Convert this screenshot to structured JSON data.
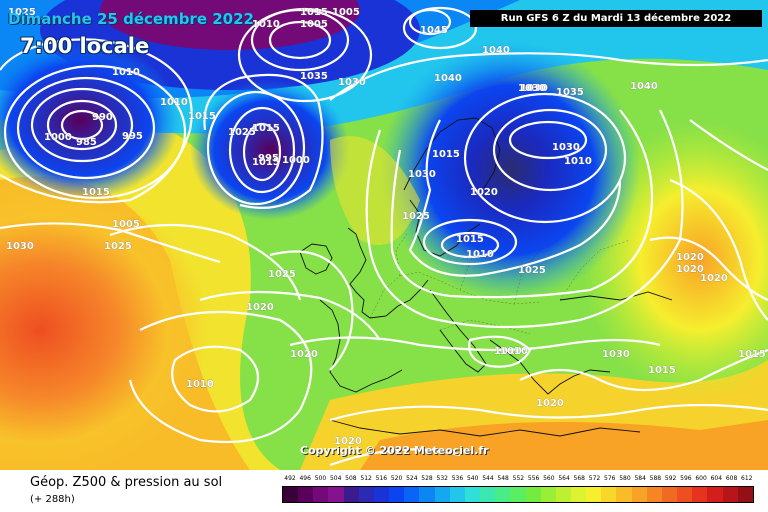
{
  "header": {
    "date": "Dimanche 25 décembre 2022",
    "time": "7:00 locale",
    "run": "Run GFS 6 Z du Mardi 13 décembre 2022"
  },
  "footer": {
    "title": "Géop. Z500 & pression au sol",
    "lead": "(+ 288h)",
    "copyright": "Copyright © 2022 Meteociel.fr"
  },
  "isobar_labels": [
    "1025",
    "1015",
    "1010",
    "1005",
    "1005",
    "1045",
    "1040",
    "1035",
    "1030",
    "1030",
    "1040",
    "1035",
    "1040",
    "1015",
    "1010",
    "1010",
    "990",
    "1000",
    "985",
    "995",
    "1015",
    "1025",
    "1015",
    "1000",
    "995",
    "1015",
    "1030",
    "1025",
    "1030",
    "1010",
    "1015",
    "1005",
    "1025",
    "1030",
    "1020",
    "1030",
    "1015",
    "1010",
    "1020",
    "1025",
    "1025",
    "1020",
    "1020",
    "1020",
    "1020",
    "1015",
    "1010",
    "1030",
    "1020",
    "1015",
    "1015",
    "1020",
    "1010",
    "1010",
    "1010"
  ],
  "legend": {
    "values": [
      "492",
      "496",
      "500",
      "504",
      "508",
      "512",
      "516",
      "520",
      "524",
      "528",
      "532",
      "536",
      "540",
      "544",
      "548",
      "552",
      "556",
      "560",
      "564",
      "568",
      "572",
      "576",
      "580",
      "584",
      "588",
      "592",
      "596",
      "600",
      "604",
      "608",
      "612"
    ],
    "colors": [
      "#3a003a",
      "#58005a",
      "#740a78",
      "#85128e",
      "#3a1c8e",
      "#2a2ab4",
      "#1a33d6",
      "#0b45f0",
      "#0a64f5",
      "#0a86f5",
      "#15a8f2",
      "#22c6ec",
      "#30dfd8",
      "#3ae8b0",
      "#4aec88",
      "#5aee62",
      "#74ec3e",
      "#9aee36",
      "#bef032",
      "#def230",
      "#f6ee2e",
      "#f8d62a",
      "#f8bc28",
      "#f8a226",
      "#f68624",
      "#f26a22",
      "#ee4e20",
      "#e4341e",
      "#d41e1c",
      "#b8141a",
      "#941016"
    ]
  }
}
